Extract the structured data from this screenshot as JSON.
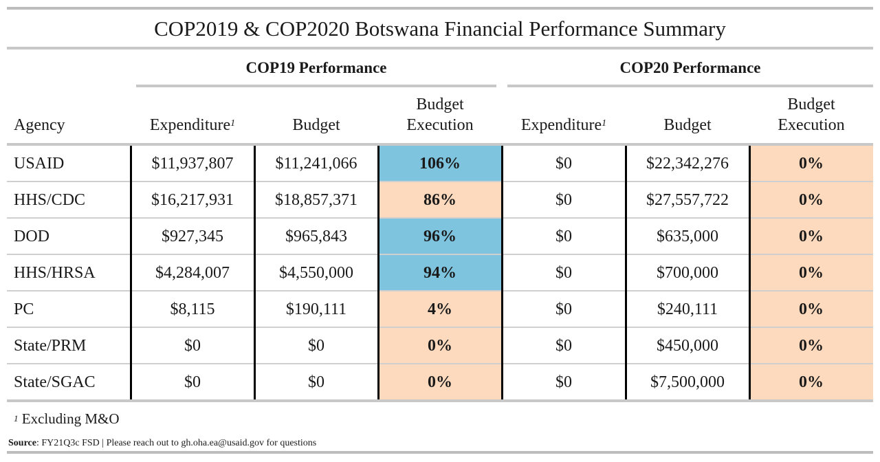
{
  "title": "COP2019 & COP2020 Botswana Financial Performance Summary",
  "groups": {
    "cop19": "COP19 Performance",
    "cop20": "COP20 Performance"
  },
  "headers": {
    "agency": "Agency",
    "expenditure": "Expenditure",
    "expenditure_sup": "1",
    "budget": "Budget",
    "budget_execution_1": "Budget",
    "budget_execution_2": "Execution"
  },
  "colors": {
    "high_execution": "#7fc4df",
    "low_execution": "#fdd9bd"
  },
  "rows": [
    {
      "agency": "USAID",
      "cop19_exp": "$11,937,807",
      "cop19_budget": "$11,241,066",
      "cop19_exec": "106%",
      "cop19_level": "hi",
      "cop20_exp": "$0",
      "cop20_budget": "$22,342,276",
      "cop20_exec": "0%"
    },
    {
      "agency": "HHS/CDC",
      "cop19_exp": "$16,217,931",
      "cop19_budget": "$18,857,371",
      "cop19_exec": "86%",
      "cop19_level": "lo",
      "cop20_exp": "$0",
      "cop20_budget": "$27,557,722",
      "cop20_exec": "0%"
    },
    {
      "agency": "DOD",
      "cop19_exp": "$927,345",
      "cop19_budget": "$965,843",
      "cop19_exec": "96%",
      "cop19_level": "hi",
      "cop20_exp": "$0",
      "cop20_budget": "$635,000",
      "cop20_exec": "0%"
    },
    {
      "agency": "HHS/HRSA",
      "cop19_exp": "$4,284,007",
      "cop19_budget": "$4,550,000",
      "cop19_exec": "94%",
      "cop19_level": "hi",
      "cop20_exp": "$0",
      "cop20_budget": "$700,000",
      "cop20_exec": "0%"
    },
    {
      "agency": "PC",
      "cop19_exp": "$8,115",
      "cop19_budget": "$190,111",
      "cop19_exec": "4%",
      "cop19_level": "lo",
      "cop20_exp": "$0",
      "cop20_budget": "$240,111",
      "cop20_exec": "0%"
    },
    {
      "agency": "State/PRM",
      "cop19_exp": "$0",
      "cop19_budget": "$0",
      "cop19_exec": "0%",
      "cop19_level": "lo",
      "cop20_exp": "$0",
      "cop20_budget": "$450,000",
      "cop20_exec": "0%"
    },
    {
      "agency": "State/SGAC",
      "cop19_exp": "$0",
      "cop19_budget": "$0",
      "cop19_exec": "0%",
      "cop19_level": "lo",
      "cop20_exp": "$0",
      "cop20_budget": "$7,500,000",
      "cop20_exec": "0%"
    }
  ],
  "footnote": {
    "marker": "1",
    "text": " Excluding M&O"
  },
  "source": {
    "label": "Source",
    "text": ": FY21Q3c FSD | Please reach out to gh.oha.ea@usaid.gov for questions"
  }
}
